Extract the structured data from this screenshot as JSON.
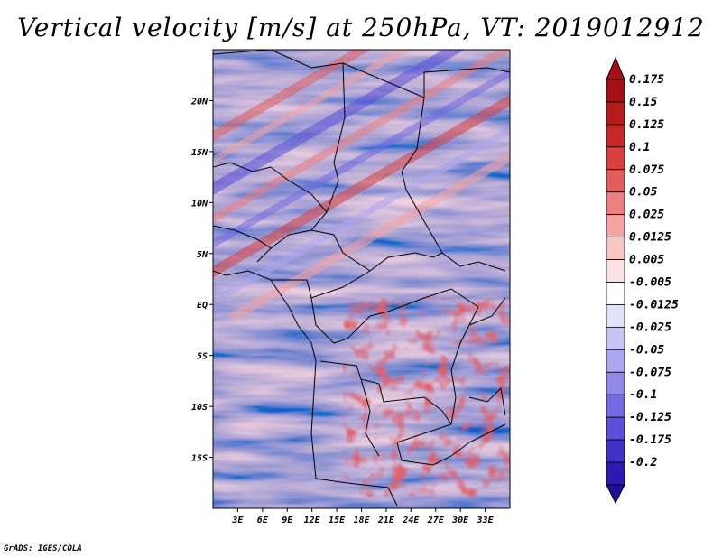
{
  "title": "Vertical velocity [m/s] at 250hPa, VT: 2019012912",
  "credit": "GrADS: IGES/COLA",
  "map": {
    "variable": "Vertical velocity",
    "units": "m/s",
    "level": "250hPa",
    "valid_time": "2019012912",
    "lon_range": [
      0,
      36
    ],
    "lat_range": [
      -20,
      25
    ],
    "lon_ticks": [
      {
        "value": 3,
        "label": "3E"
      },
      {
        "value": 6,
        "label": "6E"
      },
      {
        "value": 9,
        "label": "9E"
      },
      {
        "value": 12,
        "label": "12E"
      },
      {
        "value": 15,
        "label": "15E"
      },
      {
        "value": 18,
        "label": "18E"
      },
      {
        "value": 21,
        "label": "21E"
      },
      {
        "value": 24,
        "label": "24E"
      },
      {
        "value": 27,
        "label": "27E"
      },
      {
        "value": 30,
        "label": "30E"
      },
      {
        "value": 33,
        "label": "33E"
      }
    ],
    "lat_ticks": [
      {
        "value": 20,
        "label": "20N"
      },
      {
        "value": 15,
        "label": "15N"
      },
      {
        "value": 10,
        "label": "10N"
      },
      {
        "value": 5,
        "label": "5N"
      },
      {
        "value": 0,
        "label": "EQ"
      },
      {
        "value": -5,
        "label": "5S"
      },
      {
        "value": -10,
        "label": "10S"
      },
      {
        "value": -15,
        "label": "15S"
      }
    ]
  },
  "colorbar": {
    "levels": [
      {
        "label": "0.175",
        "color": "#a50f15"
      },
      {
        "label": "0.15",
        "color": "#b71c1c"
      },
      {
        "label": "0.125",
        "color": "#c62828"
      },
      {
        "label": "0.1",
        "color": "#d84040"
      },
      {
        "label": "0.075",
        "color": "#e35d5d"
      },
      {
        "label": "0.05",
        "color": "#ec7f7f"
      },
      {
        "label": "0.025",
        "color": "#f4a3a3"
      },
      {
        "label": "0.0125",
        "color": "#f9c5c5"
      },
      {
        "label": "0.005",
        "color": "#fde2e2"
      },
      {
        "label": "-0.005",
        "color": "#ffffff"
      },
      {
        "label": "-0.0125",
        "color": "#e3e1fb"
      },
      {
        "label": "-0.025",
        "color": "#c8c5f6"
      },
      {
        "label": "-0.05",
        "color": "#aba7f1"
      },
      {
        "label": "-0.075",
        "color": "#8f89ea"
      },
      {
        "label": "-0.1",
        "color": "#736be2"
      },
      {
        "label": "-0.125",
        "color": "#5a50d8"
      },
      {
        "label": "-0.175",
        "color": "#3f32c9"
      },
      {
        "label": "-0.2",
        "color": "#2a1cb3"
      }
    ],
    "top_arrow_color": "#a50f15",
    "bottom_arrow_color": "#1f0f9e"
  }
}
